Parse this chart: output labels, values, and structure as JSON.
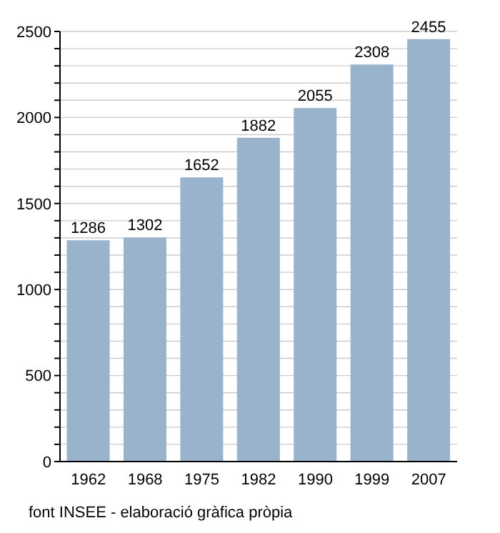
{
  "chart_data": {
    "type": "bar",
    "categories": [
      "1962",
      "1968",
      "1975",
      "1982",
      "1990",
      "1999",
      "2007"
    ],
    "values": [
      1286,
      1302,
      1652,
      1882,
      2055,
      2308,
      2455
    ],
    "color": "#9ab3cc",
    "ylim": [
      0,
      2500
    ],
    "yticks": [
      0,
      {
        "value": 100,
        "label": null
      },
      {
        "value": 200,
        "label": null
      },
      {
        "value": 300,
        "label": null
      },
      {
        "value": 400,
        "label": null
      },
      500,
      {
        "value": 600,
        "label": null
      },
      {
        "value": 700,
        "label": null
      },
      {
        "value": 800,
        "label": null
      },
      {
        "value": 900,
        "label": null
      },
      1000,
      {
        "value": 1100,
        "label": null
      },
      {
        "value": 1200,
        "label": null
      },
      {
        "value": 1300,
        "label": null
      },
      {
        "value": 1400,
        "label": null
      },
      1500,
      {
        "value": 1600,
        "label": null
      },
      {
        "value": 1700,
        "label": null
      },
      {
        "value": 1800,
        "label": null
      },
      {
        "value": 1900,
        "label": null
      },
      2000,
      {
        "value": 2100,
        "label": null
      },
      {
        "value": 2200,
        "label": null
      },
      {
        "value": 2300,
        "label": null
      },
      {
        "value": 2400,
        "label": null
      },
      2500
    ],
    "grid": "y",
    "data_labels": true,
    "annotations": [
      "font INSEE - elaboració gràfica pròpia"
    ]
  }
}
